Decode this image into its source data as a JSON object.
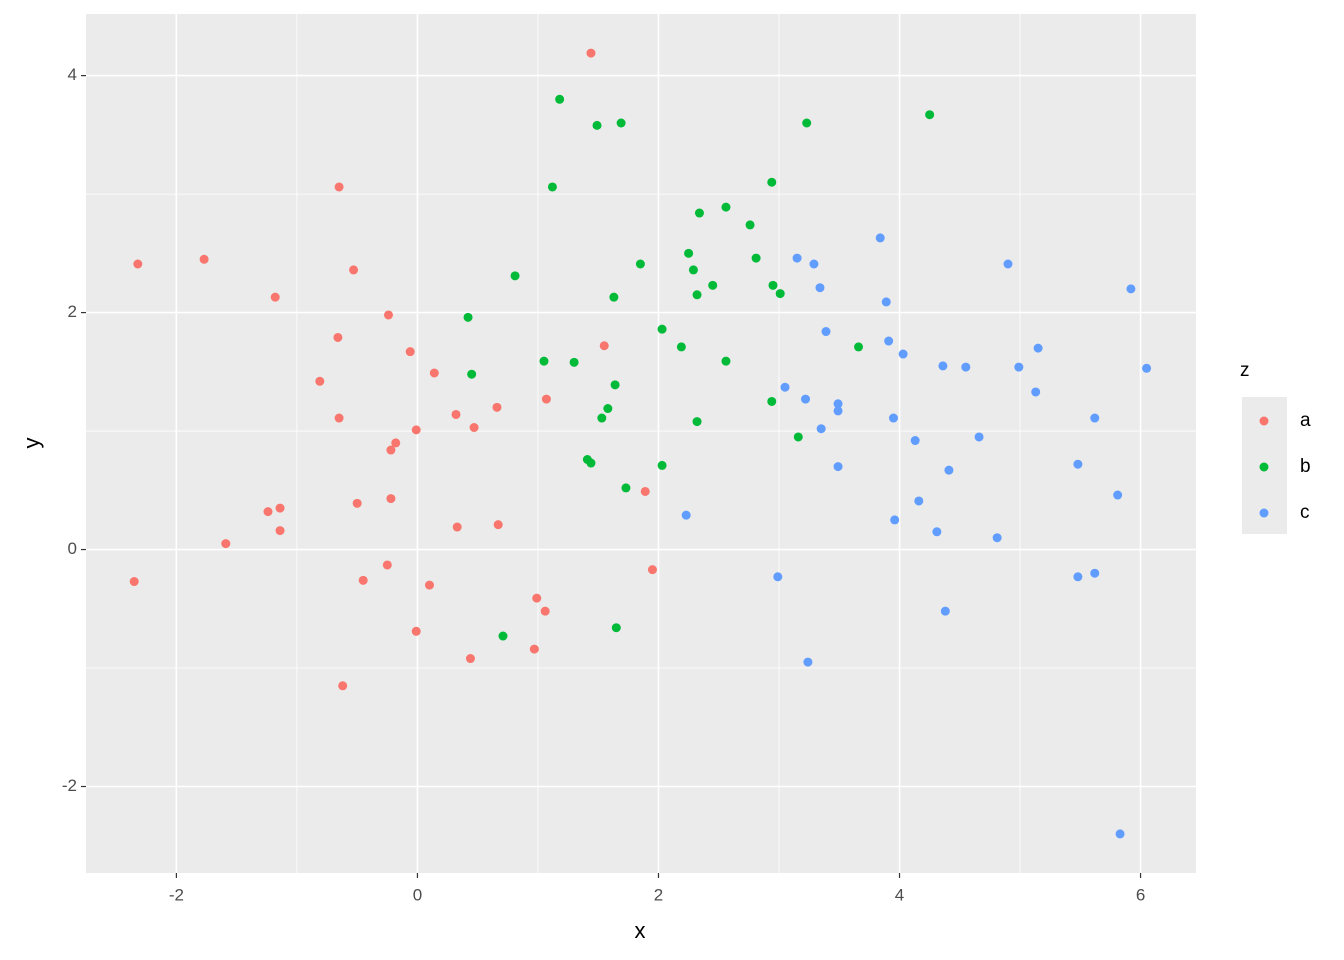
{
  "chart_data": {
    "type": "scatter",
    "x_label": "x",
    "y_label": "y",
    "legend_title": "z",
    "legend_position": "right",
    "xlim": [
      -2.75,
      6.46
    ],
    "ylim": [
      -2.73,
      4.52
    ],
    "xticks": [
      -2,
      0,
      2,
      4,
      6
    ],
    "yticks": [
      -2,
      0,
      2,
      4
    ],
    "x_minor_breaks": [
      -1,
      1,
      3,
      5
    ],
    "y_minor_breaks": [
      -1,
      1,
      3
    ],
    "grid": true,
    "series": [
      {
        "name": "a",
        "color": "#F8766D",
        "x": [
          -2.32,
          -2.35,
          -1.77,
          -1.59,
          -1.18,
          -1.24,
          -1.14,
          -1.14,
          -0.65,
          -0.66,
          -0.65,
          -0.81,
          -0.53,
          -0.5,
          -0.45,
          -0.62,
          -0.24,
          -0.22,
          -0.18,
          -0.22,
          -0.25,
          -0.06,
          -0.01,
          0.1,
          -0.01,
          0.14,
          0.32,
          0.47,
          0.33,
          0.66,
          0.67,
          0.44,
          1.44,
          1.07,
          0.99,
          1.06,
          0.97,
          1.55,
          1.89,
          1.95
        ],
        "values": [
          2.41,
          -0.27,
          2.45,
          0.05,
          2.13,
          0.32,
          0.35,
          0.16,
          3.06,
          1.79,
          1.11,
          1.42,
          2.36,
          0.39,
          -0.26,
          -1.15,
          1.98,
          0.84,
          0.9,
          0.43,
          -0.13,
          1.67,
          1.01,
          -0.3,
          -0.69,
          1.49,
          1.14,
          1.03,
          0.19,
          1.2,
          0.21,
          -0.92,
          4.19,
          1.27,
          -0.41,
          -0.52,
          -0.84,
          1.72,
          0.49,
          -0.17
        ]
      },
      {
        "name": "b",
        "color": "#00BA38",
        "x": [
          1.18,
          1.49,
          1.69,
          1.12,
          3.23,
          4.25,
          2.94,
          2.34,
          2.56,
          2.76,
          0.81,
          1.85,
          2.25,
          2.29,
          2.81,
          1.63,
          2.32,
          2.45,
          2.95,
          3.01,
          0.42,
          2.03,
          2.19,
          1.05,
          1.3,
          2.56,
          3.66,
          0.45,
          1.64,
          1.58,
          1.53,
          2.32,
          2.94,
          3.16,
          1.41,
          1.44,
          2.03,
          1.73,
          0.71,
          1.65
        ],
        "values": [
          3.8,
          3.58,
          3.6,
          3.06,
          3.6,
          3.67,
          3.1,
          2.84,
          2.89,
          2.74,
          2.31,
          2.41,
          2.5,
          2.36,
          2.46,
          2.13,
          2.15,
          2.23,
          2.23,
          2.16,
          1.96,
          1.86,
          1.71,
          1.59,
          1.58,
          1.59,
          1.71,
          1.48,
          1.39,
          1.19,
          1.11,
          1.08,
          1.25,
          0.95,
          0.76,
          0.73,
          0.71,
          0.52,
          -0.73,
          -0.66
        ]
      },
      {
        "name": "c",
        "color": "#619CFF",
        "x": [
          3.84,
          3.15,
          3.29,
          3.34,
          3.89,
          4.9,
          5.92,
          3.39,
          3.91,
          4.03,
          4.36,
          4.55,
          4.99,
          5.15,
          6.05,
          3.05,
          5.13,
          3.22,
          3.49,
          3.49,
          3.95,
          5.62,
          3.35,
          4.13,
          4.66,
          3.49,
          4.41,
          5.48,
          5.81,
          4.16,
          2.23,
          3.96,
          4.31,
          4.81,
          2.99,
          5.48,
          5.62,
          4.38,
          3.24,
          5.83
        ],
        "values": [
          2.63,
          2.46,
          2.41,
          2.21,
          2.09,
          2.41,
          2.2,
          1.84,
          1.76,
          1.65,
          1.55,
          1.54,
          1.54,
          1.7,
          1.53,
          1.37,
          1.33,
          1.27,
          1.23,
          1.17,
          1.11,
          1.11,
          1.02,
          0.92,
          0.95,
          0.7,
          0.67,
          0.72,
          0.46,
          0.41,
          0.29,
          0.25,
          0.15,
          0.1,
          -0.23,
          -0.23,
          -0.2,
          -0.52,
          -0.95,
          -2.4
        ]
      }
    ]
  }
}
